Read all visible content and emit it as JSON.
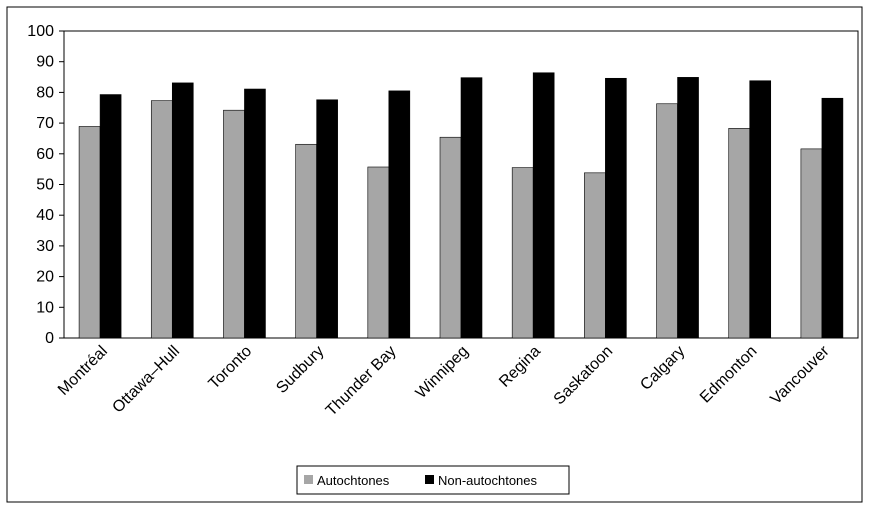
{
  "chart_data": {
    "type": "bar",
    "categories": [
      "Montréal",
      "Ottawa–Hull",
      "Toronto",
      "Sudbury",
      "Thunder Bay",
      "Winnipeg",
      "Regina",
      "Saskatoon",
      "Calgary",
      "Edmonton",
      "Vancouver"
    ],
    "series": [
      {
        "name": "Autochtones",
        "color": "#a6a6a6",
        "values": [
          68.9,
          77.3,
          74.2,
          63.1,
          55.7,
          65.4,
          55.5,
          53.8,
          76.3,
          68.3,
          61.6
        ]
      },
      {
        "name": "Non-autochtones",
        "color": "#000000",
        "values": [
          79.3,
          83.1,
          81.1,
          77.6,
          80.5,
          84.8,
          86.4,
          84.6,
          84.9,
          83.8,
          78.1
        ]
      }
    ],
    "title": "",
    "xlabel": "",
    "ylabel": "",
    "ylim": [
      0,
      100
    ],
    "yticks": [
      "0",
      "10",
      "20",
      "30",
      "40",
      "50",
      "60",
      "70",
      "80",
      "90",
      "100"
    ],
    "grid": false,
    "legend_position": "bottom"
  }
}
